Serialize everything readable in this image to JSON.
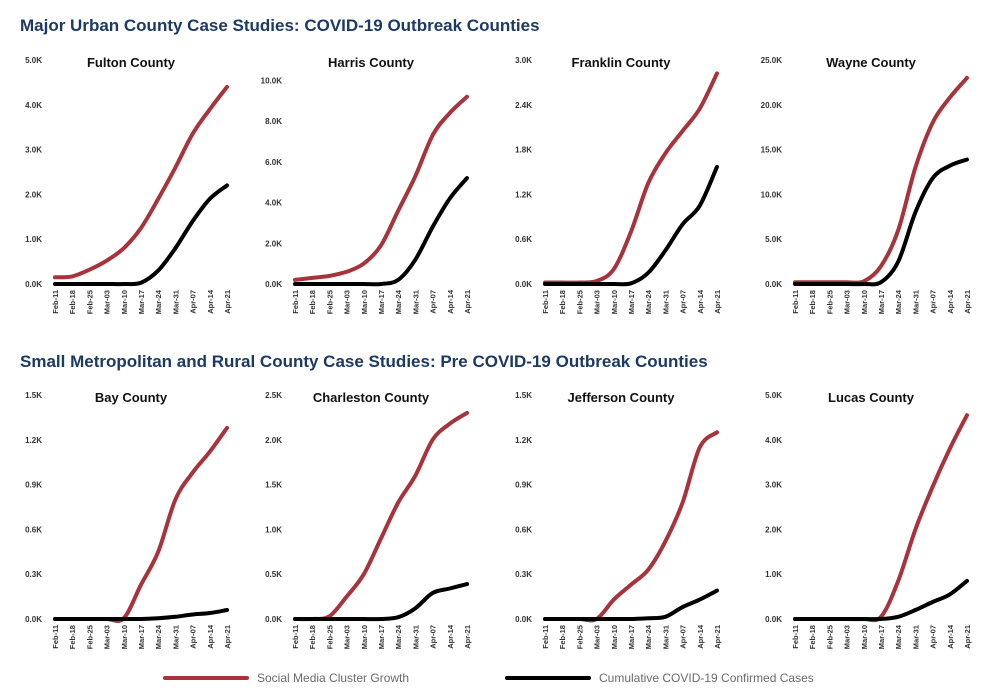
{
  "sections": [
    {
      "title": "Major Urban County Case Studies: COVID-19 Outbreak Counties"
    },
    {
      "title": "Small Metropolitan and Rural County Case Studies: Pre COVID-19 Outbreak Counties"
    }
  ],
  "colors": {
    "social": "#a8333a",
    "cases": "#000000"
  },
  "legend": {
    "social_label": "Social Media Cluster Growth",
    "cases_label": "Cumulative COVID-19 Confirmed Cases"
  },
  "chart_data": [
    {
      "type": "line",
      "title": "Fulton County",
      "categories": [
        "Feb-11",
        "Feb-18",
        "Feb-25",
        "Mar-03",
        "Mar-10",
        "Mar-17",
        "Mar-24",
        "Mar-31",
        "Apr-07",
        "Apr-14",
        "Apr-21"
      ],
      "ylim": [
        0,
        5000
      ],
      "yticks": [
        0,
        1000,
        2000,
        3000,
        4000,
        5000
      ],
      "ytick_labels": [
        "0.0K",
        "1.0K",
        "2.0K",
        "3.0K",
        "4.0K",
        "5.0K"
      ],
      "series": [
        {
          "name": "Social Media Cluster Growth",
          "values": [
            150,
            170,
            320,
            520,
            800,
            1250,
            1900,
            2600,
            3350,
            3900,
            4400
          ]
        },
        {
          "name": "Cumulative COVID-19 Confirmed Cases",
          "values": [
            0,
            0,
            0,
            0,
            0,
            30,
            300,
            800,
            1400,
            1900,
            2200
          ]
        }
      ]
    },
    {
      "type": "line",
      "title": "Harris County",
      "categories": [
        "Feb-11",
        "Feb-18",
        "Feb-25",
        "Mar-03",
        "Mar-10",
        "Mar-17",
        "Mar-24",
        "Mar-31",
        "Apr-07",
        "Apr-14",
        "Apr-21"
      ],
      "ylim": [
        0,
        11000
      ],
      "yticks": [
        0,
        2000,
        4000,
        6000,
        8000,
        10000
      ],
      "ytick_labels": [
        "0.0K",
        "2.0K",
        "4.0K",
        "6.0K",
        "8.0K",
        "10.0K"
      ],
      "series": [
        {
          "name": "Social Media Cluster Growth",
          "values": [
            200,
            300,
            400,
            600,
            1000,
            1900,
            3600,
            5300,
            7300,
            8400,
            9200
          ]
        },
        {
          "name": "Cumulative COVID-19 Confirmed Cases",
          "values": [
            0,
            0,
            0,
            0,
            0,
            0,
            200,
            1200,
            2800,
            4200,
            5200
          ]
        }
      ]
    },
    {
      "type": "line",
      "title": "Franklin County",
      "categories": [
        "Feb-11",
        "Feb-18",
        "Feb-25",
        "Mar-03",
        "Mar-10",
        "Mar-17",
        "Mar-24",
        "Mar-31",
        "Apr-07",
        "Apr-14",
        "Apr-21"
      ],
      "ylim": [
        0,
        3000
      ],
      "yticks": [
        0,
        600,
        1200,
        1800,
        2400,
        3000
      ],
      "ytick_labels": [
        "0.0K",
        "0.6K",
        "1.2K",
        "1.8K",
        "2.4K",
        "3.0K"
      ],
      "series": [
        {
          "name": "Social Media Cluster Growth",
          "values": [
            20,
            20,
            20,
            40,
            200,
            700,
            1350,
            1750,
            2050,
            2350,
            2820
          ]
        },
        {
          "name": "Cumulative COVID-19 Confirmed Cases",
          "values": [
            0,
            0,
            0,
            0,
            0,
            10,
            150,
            450,
            800,
            1050,
            1570
          ]
        }
      ]
    },
    {
      "type": "line",
      "title": "Wayne County",
      "categories": [
        "Feb-11",
        "Feb-18",
        "Feb-25",
        "Mar-03",
        "Mar-10",
        "Mar-17",
        "Mar-24",
        "Mar-31",
        "Apr-07",
        "Apr-14",
        "Apr-21"
      ],
      "ylim": [
        0,
        25000
      ],
      "yticks": [
        0,
        5000,
        10000,
        15000,
        20000,
        25000
      ],
      "ytick_labels": [
        "0.0K",
        "5.0K",
        "10.0K",
        "15.0K",
        "20.0K",
        "25.0K"
      ],
      "series": [
        {
          "name": "Social Media Cluster Growth",
          "values": [
            200,
            200,
            200,
            200,
            300,
            2000,
            6000,
            13000,
            18000,
            20800,
            23000
          ]
        },
        {
          "name": "Cumulative COVID-19 Confirmed Cases",
          "values": [
            0,
            0,
            0,
            0,
            0,
            200,
            2500,
            8000,
            11800,
            13200,
            13900
          ]
        }
      ]
    },
    {
      "type": "line",
      "title": "Bay County",
      "categories": [
        "Feb-11",
        "Feb-18",
        "Feb-25",
        "Mar-03",
        "Mar-10",
        "Mar-17",
        "Mar-24",
        "Mar-31",
        "Apr-07",
        "Apr-14",
        "Apr-21"
      ],
      "ylim": [
        0,
        1500
      ],
      "yticks": [
        0,
        300,
        600,
        900,
        1200,
        1500
      ],
      "ytick_labels": [
        "0.0K",
        "0.3K",
        "0.6K",
        "0.9K",
        "1.2K",
        "1.5K"
      ],
      "series": [
        {
          "name": "Social Media Cluster Growth",
          "values": [
            0,
            0,
            0,
            0,
            5,
            230,
            450,
            800,
            980,
            1120,
            1280
          ]
        },
        {
          "name": "Cumulative COVID-19 Confirmed Cases",
          "values": [
            0,
            0,
            0,
            0,
            0,
            0,
            5,
            15,
            30,
            40,
            60
          ]
        }
      ]
    },
    {
      "type": "line",
      "title": "Charleston County",
      "categories": [
        "Feb-11",
        "Feb-18",
        "Feb-25",
        "Mar-03",
        "Mar-10",
        "Mar-17",
        "Mar-24",
        "Mar-31",
        "Apr-07",
        "Apr-14",
        "Apr-21"
      ],
      "ylim": [
        0,
        2500
      ],
      "yticks": [
        0,
        500,
        1000,
        1500,
        2000,
        2500
      ],
      "ytick_labels": [
        "0.0K",
        "0.5K",
        "1.0K",
        "1.5K",
        "2.0K",
        "2.5K"
      ],
      "series": [
        {
          "name": "Social Media Cluster Growth",
          "values": [
            0,
            0,
            30,
            250,
            500,
            900,
            1300,
            1600,
            2000,
            2180,
            2300
          ]
        },
        {
          "name": "Cumulative COVID-19 Confirmed Cases",
          "values": [
            0,
            0,
            0,
            0,
            0,
            0,
            20,
            120,
            290,
            340,
            390
          ]
        }
      ]
    },
    {
      "type": "line",
      "title": "Jefferson County",
      "categories": [
        "Feb-11",
        "Feb-18",
        "Feb-25",
        "Mar-03",
        "Mar-10",
        "Mar-17",
        "Mar-24",
        "Mar-31",
        "Apr-07",
        "Apr-14",
        "Apr-21"
      ],
      "ylim": [
        0,
        1500
      ],
      "yticks": [
        0,
        300,
        600,
        900,
        1200,
        1500
      ],
      "ytick_labels": [
        "0.0K",
        "0.3K",
        "0.6K",
        "0.9K",
        "1.2K",
        "1.5K"
      ],
      "series": [
        {
          "name": "Social Media Cluster Growth",
          "values": [
            0,
            0,
            0,
            0,
            130,
            230,
            330,
            520,
            780,
            1150,
            1250
          ]
        },
        {
          "name": "Cumulative COVID-19 Confirmed Cases",
          "values": [
            0,
            0,
            0,
            0,
            0,
            0,
            5,
            15,
            80,
            130,
            190
          ]
        }
      ]
    },
    {
      "type": "line",
      "title": "Lucas County",
      "categories": [
        "Feb-11",
        "Feb-18",
        "Feb-25",
        "Mar-03",
        "Mar-10",
        "Mar-17",
        "Mar-24",
        "Mar-31",
        "Apr-07",
        "Apr-14",
        "Apr-21"
      ],
      "ylim": [
        0,
        5000
      ],
      "yticks": [
        0,
        1000,
        2000,
        3000,
        4000,
        5000
      ],
      "ytick_labels": [
        "0.0K",
        "1.0K",
        "2.0K",
        "3.0K",
        "4.0K",
        "5.0K"
      ],
      "series": [
        {
          "name": "Social Media Cluster Growth",
          "values": [
            0,
            0,
            0,
            0,
            0,
            50,
            850,
            2000,
            2950,
            3800,
            4550
          ]
        },
        {
          "name": "Cumulative COVID-19 Confirmed Cases",
          "values": [
            0,
            0,
            0,
            0,
            0,
            0,
            50,
            200,
            380,
            550,
            850
          ]
        }
      ]
    }
  ]
}
